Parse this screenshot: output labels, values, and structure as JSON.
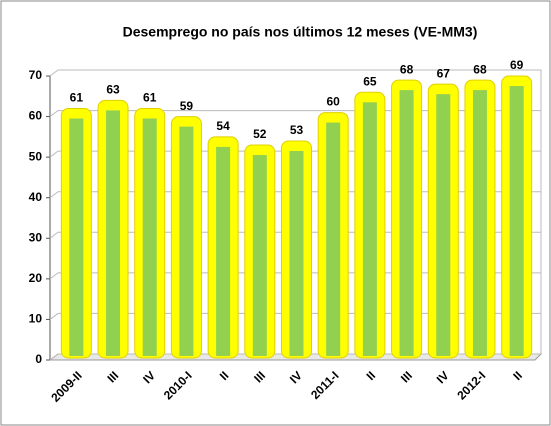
{
  "chart_data": {
    "type": "bar",
    "title": "Desemprego no país nos últimos 12 meses (VE-MM3)",
    "categories": [
      "2009-II",
      "III",
      "IV",
      "2010-I",
      "II",
      "III",
      "IV",
      "2011-I",
      "II",
      "III",
      "IV",
      "2012-I",
      "II"
    ],
    "values": [
      61,
      63,
      61,
      59,
      54,
      52,
      53,
      60,
      65,
      68,
      67,
      68,
      69
    ],
    "color": "#ffff00",
    "stripe_color": "#92d050",
    "ylim": [
      0,
      70
    ],
    "yticks": [
      0,
      10,
      20,
      30,
      40,
      50,
      60,
      70
    ],
    "grid": true
  }
}
